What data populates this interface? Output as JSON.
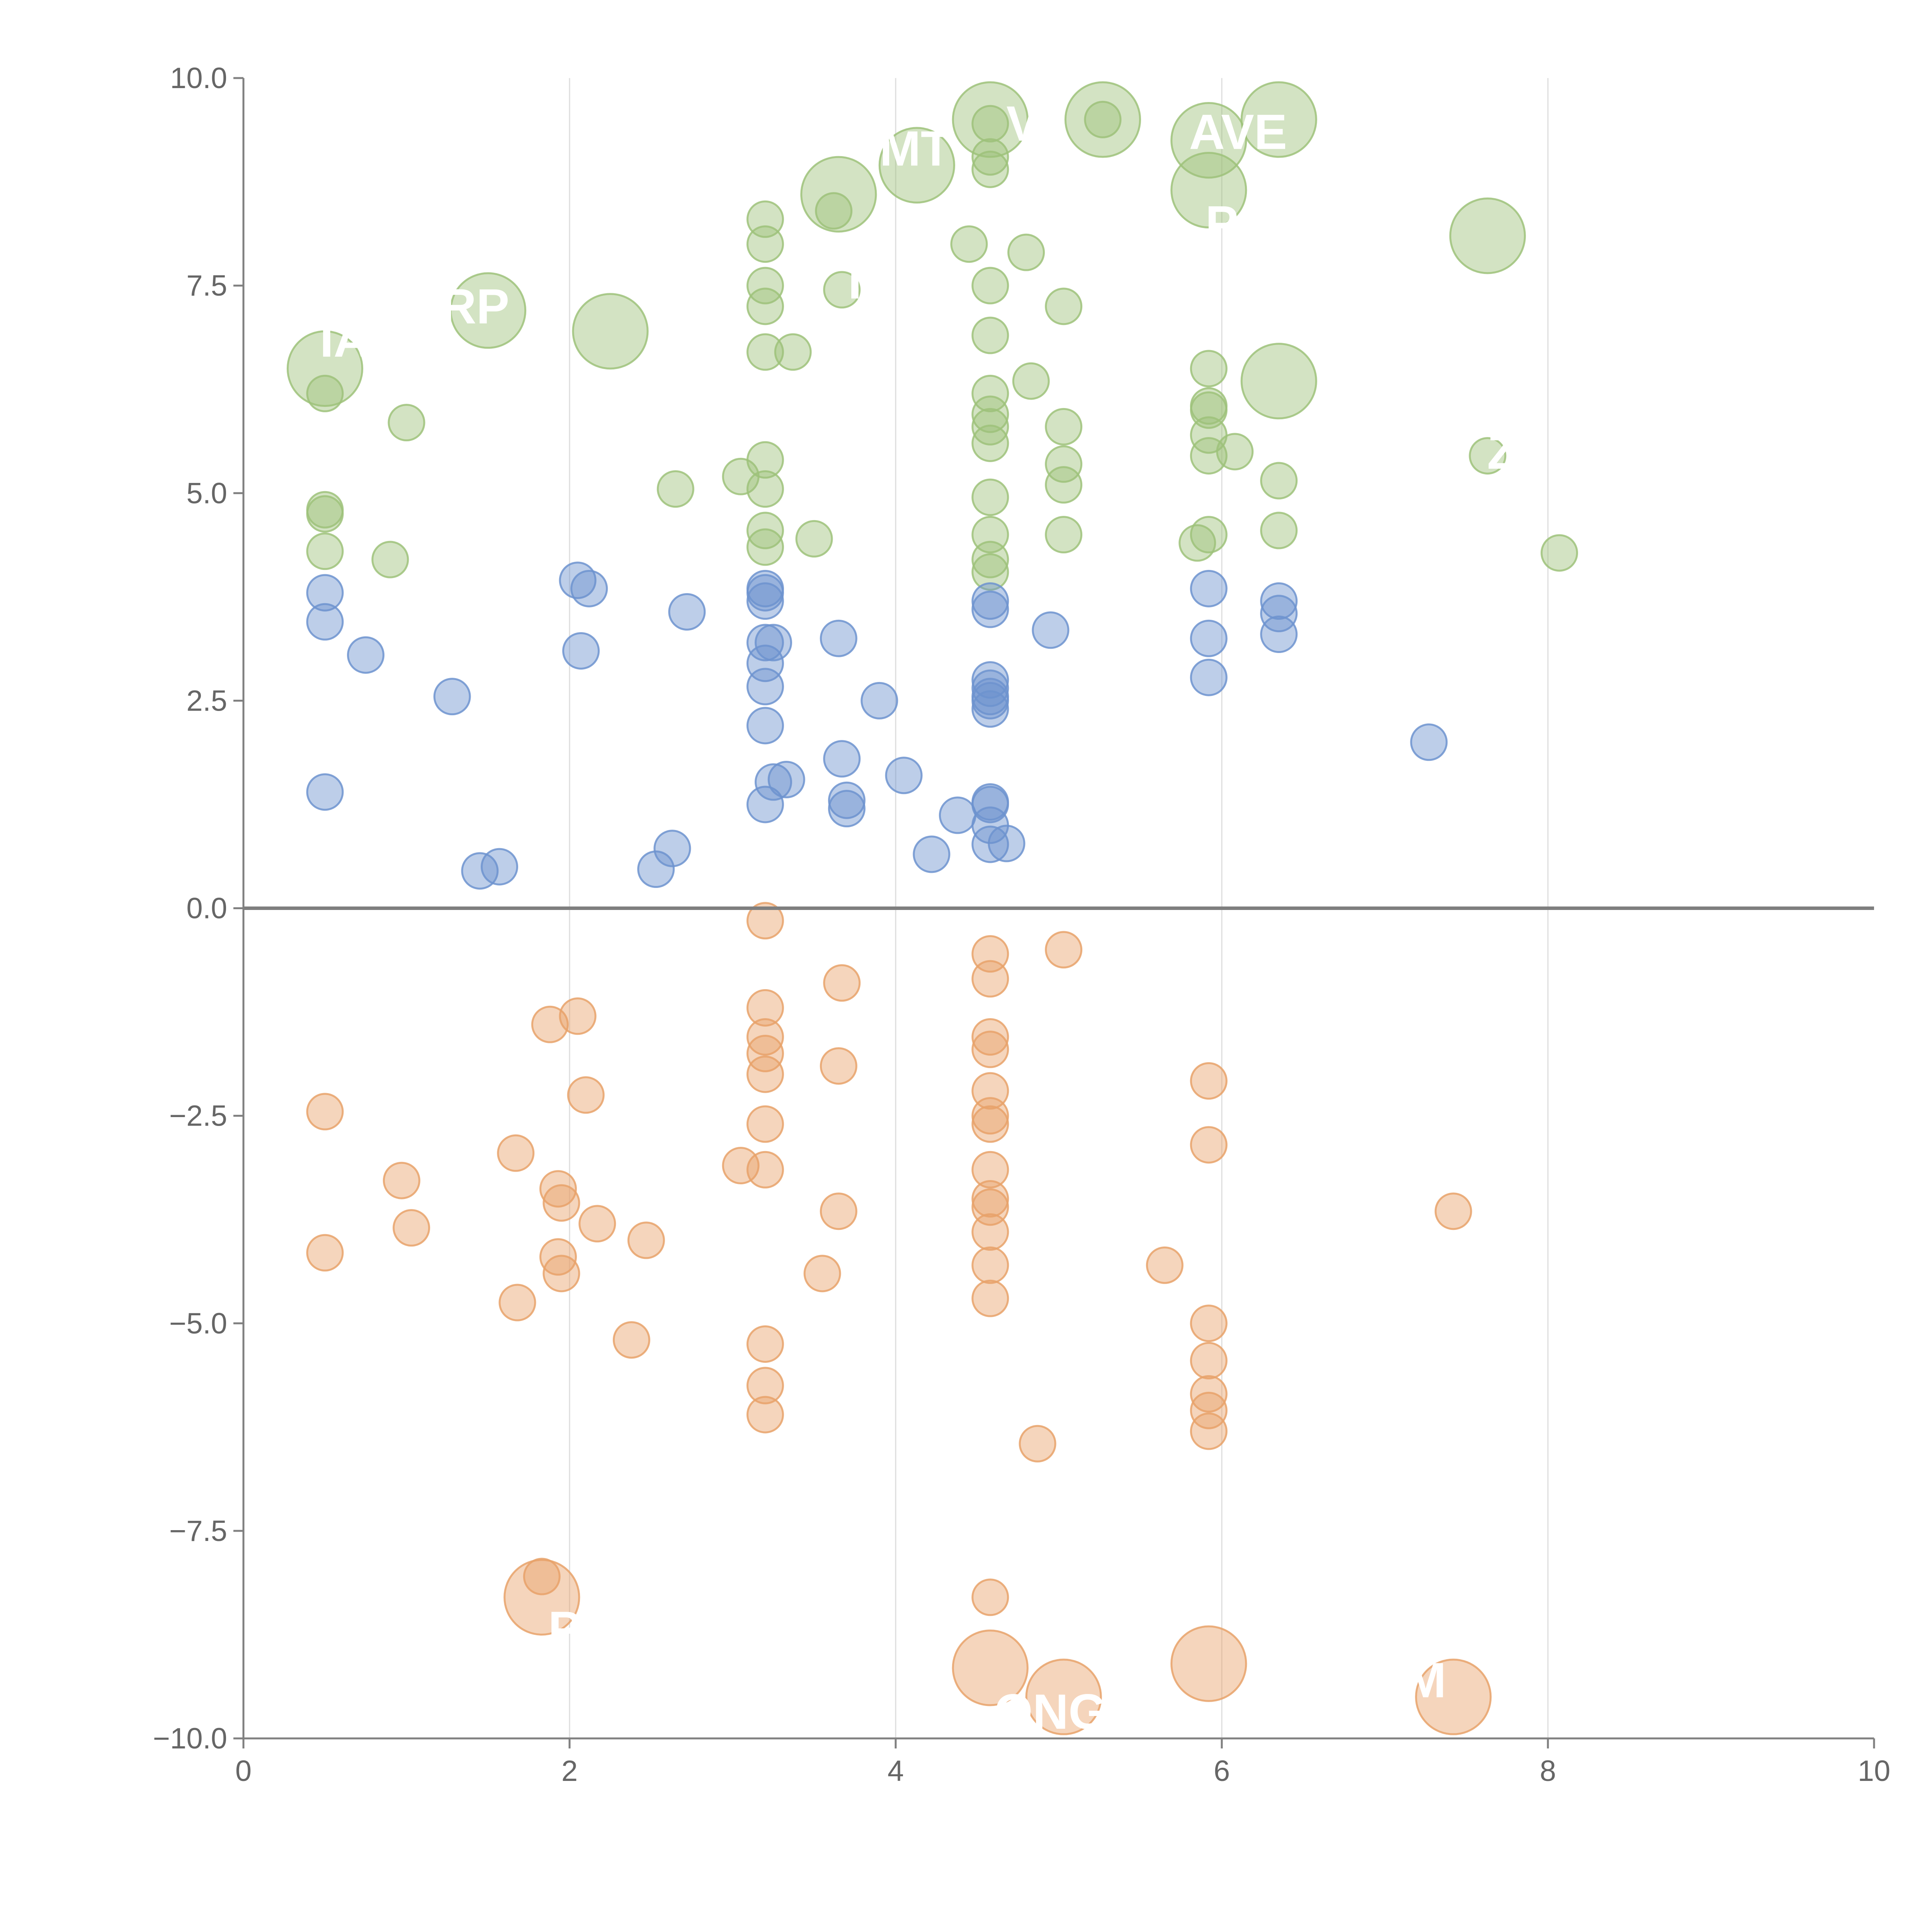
{
  "chart_data": {
    "type": "scatter",
    "title": "",
    "xlabel": "",
    "ylabel": "",
    "xlim": [
      0,
      10
    ],
    "ylim": [
      -10,
      10
    ],
    "x_ticks": [
      "0",
      "2",
      "4",
      "6",
      "8",
      "10"
    ],
    "y_ticks": [
      "−10.0",
      "−7.5",
      "−5.0",
      "−2.5",
      "0.0",
      "2.5",
      "5.0",
      "7.5",
      "10.0"
    ],
    "x_tick_values": [
      0,
      2,
      4,
      6,
      8,
      10
    ],
    "y_tick_values": [
      -10,
      -7.5,
      -5,
      -2.5,
      0,
      2.5,
      5,
      7.5,
      10
    ],
    "vertical_grid": [
      2,
      4,
      6,
      8
    ],
    "zero_line": true,
    "colors": {
      "green": "#9dc27a",
      "blue": "#6d93cf",
      "orange": "#e8a26a"
    },
    "series": [
      {
        "color": "green",
        "points": [
          [
            0.5,
            6.2,
            1
          ],
          [
            0.5,
            4.8,
            1
          ],
          [
            0.5,
            4.75,
            1
          ],
          [
            0.5,
            4.3,
            1
          ],
          [
            0.9,
            4.2,
            1
          ],
          [
            1.0,
            5.85,
            1
          ],
          [
            2.65,
            5.05,
            1
          ],
          [
            3.05,
            5.2,
            1
          ],
          [
            3.2,
            8.3,
            1
          ],
          [
            3.2,
            8.0,
            1
          ],
          [
            3.2,
            7.5,
            1
          ],
          [
            3.2,
            7.25,
            1
          ],
          [
            3.2,
            6.7,
            1
          ],
          [
            3.2,
            5.4,
            1
          ],
          [
            3.2,
            5.05,
            1
          ],
          [
            3.2,
            4.55,
            1
          ],
          [
            3.2,
            4.35,
            1
          ],
          [
            3.37,
            6.7,
            1
          ],
          [
            3.5,
            4.45,
            1
          ],
          [
            3.62,
            8.4,
            1
          ],
          [
            3.67,
            7.45,
            1
          ],
          [
            4.45,
            8.0,
            1
          ],
          [
            4.58,
            9.45,
            1
          ],
          [
            4.58,
            9.05,
            1
          ],
          [
            4.58,
            8.9,
            1
          ],
          [
            4.58,
            7.5,
            1
          ],
          [
            4.58,
            6.9,
            1
          ],
          [
            4.58,
            6.2,
            1
          ],
          [
            4.58,
            5.95,
            1
          ],
          [
            4.58,
            5.8,
            1
          ],
          [
            4.58,
            5.6,
            1
          ],
          [
            4.58,
            4.95,
            1
          ],
          [
            4.58,
            4.5,
            1
          ],
          [
            4.58,
            4.2,
            1
          ],
          [
            4.58,
            4.05,
            1
          ],
          [
            4.8,
            7.9,
            1
          ],
          [
            4.83,
            6.35,
            1
          ],
          [
            5.03,
            7.25,
            1
          ],
          [
            5.03,
            5.8,
            1
          ],
          [
            5.03,
            5.35,
            1
          ],
          [
            5.03,
            5.1,
            1
          ],
          [
            5.03,
            4.5,
            1
          ],
          [
            5.27,
            9.5,
            1
          ],
          [
            5.85,
            4.4,
            1
          ],
          [
            5.92,
            6.5,
            1
          ],
          [
            5.92,
            6.05,
            1
          ],
          [
            5.92,
            6.0,
            1
          ],
          [
            5.92,
            5.7,
            1
          ],
          [
            5.92,
            5.45,
            1
          ],
          [
            5.92,
            4.5,
            1
          ],
          [
            6.08,
            5.5,
            1
          ],
          [
            6.35,
            5.15,
            1
          ],
          [
            6.35,
            4.55,
            1
          ],
          [
            7.63,
            5.45,
            1
          ],
          [
            8.07,
            4.28,
            1
          ],
          [
            0.5,
            6.5,
            2.1
          ],
          [
            1.5,
            7.2,
            2.1
          ],
          [
            2.25,
            6.95,
            2.1
          ],
          [
            3.65,
            8.6,
            2.1
          ],
          [
            4.13,
            8.95,
            2.1
          ],
          [
            4.58,
            9.5,
            2.1
          ],
          [
            5.27,
            9.5,
            2.1
          ],
          [
            5.92,
            9.25,
            2.1
          ],
          [
            5.92,
            8.65,
            2.1
          ],
          [
            6.35,
            9.5,
            2.1
          ],
          [
            6.35,
            6.35,
            2.1
          ],
          [
            7.63,
            8.1,
            2.1
          ]
        ]
      },
      {
        "color": "blue",
        "points": [
          [
            0.5,
            3.8,
            1
          ],
          [
            0.5,
            3.45,
            1
          ],
          [
            0.5,
            1.4,
            1
          ],
          [
            0.75,
            3.05,
            1
          ],
          [
            1.28,
            2.55,
            1
          ],
          [
            1.45,
            0.45,
            1
          ],
          [
            1.57,
            0.5,
            1
          ],
          [
            2.05,
            3.95,
            1
          ],
          [
            2.07,
            3.1,
            1
          ],
          [
            2.12,
            3.85,
            1
          ],
          [
            2.53,
            0.47,
            1
          ],
          [
            2.63,
            0.72,
            1
          ],
          [
            2.72,
            3.57,
            1
          ],
          [
            3.2,
            3.85,
            1
          ],
          [
            3.2,
            3.8,
            1
          ],
          [
            3.2,
            3.7,
            1
          ],
          [
            3.2,
            3.2,
            1
          ],
          [
            3.2,
            2.95,
            1
          ],
          [
            3.2,
            2.67,
            1
          ],
          [
            3.2,
            2.2,
            1
          ],
          [
            3.2,
            1.25,
            1
          ],
          [
            3.25,
            3.2,
            1
          ],
          [
            3.25,
            1.52,
            1
          ],
          [
            3.33,
            1.55,
            1
          ],
          [
            3.65,
            3.25,
            1
          ],
          [
            3.67,
            1.8,
            1
          ],
          [
            3.7,
            1.3,
            1
          ],
          [
            3.7,
            1.2,
            1
          ],
          [
            3.9,
            2.5,
            1
          ],
          [
            4.05,
            1.6,
            1
          ],
          [
            4.22,
            0.65,
            1
          ],
          [
            4.38,
            1.12,
            1
          ],
          [
            4.58,
            3.7,
            1
          ],
          [
            4.58,
            3.6,
            1
          ],
          [
            4.58,
            2.75,
            1
          ],
          [
            4.58,
            2.65,
            1
          ],
          [
            4.58,
            2.55,
            1
          ],
          [
            4.58,
            2.5,
            1
          ],
          [
            4.58,
            2.4,
            1
          ],
          [
            4.58,
            1.28,
            1
          ],
          [
            4.58,
            1.25,
            1
          ],
          [
            4.58,
            1.0,
            1
          ],
          [
            4.58,
            0.77,
            1
          ],
          [
            4.68,
            0.78,
            1
          ],
          [
            4.95,
            3.35,
            1
          ],
          [
            5.92,
            3.85,
            1
          ],
          [
            5.92,
            3.25,
            1
          ],
          [
            5.92,
            2.78,
            1
          ],
          [
            6.35,
            3.7,
            1
          ],
          [
            6.35,
            3.55,
            1
          ],
          [
            6.35,
            3.3,
            1
          ],
          [
            7.27,
            2.0,
            1
          ]
        ]
      },
      {
        "color": "orange",
        "points": [
          [
            0.5,
            -2.45,
            1
          ],
          [
            0.5,
            -4.15,
            1
          ],
          [
            0.97,
            -3.28,
            1
          ],
          [
            1.03,
            -3.85,
            1
          ],
          [
            1.67,
            -2.95,
            1
          ],
          [
            1.68,
            -4.75,
            1
          ],
          [
            1.88,
            -1.4,
            1
          ],
          [
            1.93,
            -3.38,
            1
          ],
          [
            1.93,
            -4.2,
            1
          ],
          [
            1.95,
            -3.55,
            1
          ],
          [
            1.95,
            -4.4,
            1
          ],
          [
            2.05,
            -1.3,
            1
          ],
          [
            2.1,
            -2.25,
            1
          ],
          [
            2.17,
            -3.8,
            1
          ],
          [
            2.38,
            -5.2,
            1
          ],
          [
            2.47,
            -4.0,
            1
          ],
          [
            3.05,
            -3.1,
            1
          ],
          [
            3.2,
            -0.15,
            1
          ],
          [
            3.2,
            -1.2,
            1
          ],
          [
            3.2,
            -1.55,
            1
          ],
          [
            3.2,
            -1.75,
            1
          ],
          [
            3.2,
            -2.0,
            1
          ],
          [
            3.2,
            -2.6,
            1
          ],
          [
            3.2,
            -3.15,
            1
          ],
          [
            3.2,
            -5.25,
            1
          ],
          [
            3.2,
            -5.75,
            1
          ],
          [
            3.2,
            -6.1,
            1
          ],
          [
            3.55,
            -4.4,
            1
          ],
          [
            3.65,
            -1.9,
            1
          ],
          [
            3.65,
            -3.65,
            1
          ],
          [
            3.67,
            -0.9,
            1
          ],
          [
            4.58,
            -0.55,
            1
          ],
          [
            4.58,
            -0.85,
            1
          ],
          [
            4.58,
            -1.55,
            1
          ],
          [
            4.58,
            -1.7,
            1
          ],
          [
            4.58,
            -2.2,
            1
          ],
          [
            4.58,
            -2.5,
            1
          ],
          [
            4.58,
            -2.6,
            1
          ],
          [
            4.58,
            -3.15,
            1
          ],
          [
            4.58,
            -3.5,
            1
          ],
          [
            4.58,
            -3.6,
            1
          ],
          [
            4.58,
            -3.9,
            1
          ],
          [
            4.58,
            -4.3,
            1
          ],
          [
            4.58,
            -4.7,
            1
          ],
          [
            4.58,
            -8.3,
            1
          ],
          [
            4.87,
            -6.45,
            1
          ],
          [
            5.03,
            -0.5,
            1
          ],
          [
            5.65,
            -4.3,
            1
          ],
          [
            5.92,
            -2.08,
            1
          ],
          [
            5.92,
            -2.85,
            1
          ],
          [
            5.92,
            -5.0,
            1
          ],
          [
            5.92,
            -5.45,
            1
          ],
          [
            5.92,
            -5.85,
            1
          ],
          [
            5.92,
            -6.05,
            1
          ],
          [
            5.92,
            -6.3,
            1
          ],
          [
            7.42,
            -3.65,
            1
          ],
          [
            1.83,
            -8.05,
            1
          ],
          [
            1.83,
            -8.3,
            2.1
          ],
          [
            4.58,
            -9.15,
            2.1
          ],
          [
            5.03,
            -9.5,
            2.1
          ],
          [
            5.92,
            -9.1,
            2.1
          ],
          [
            7.42,
            -9.5,
            2.1
          ]
        ]
      }
    ],
    "annotations": [
      {
        "text": "IA",
        "x": 0.62,
        "y": 6.85
      },
      {
        "text": "RP",
        "x": 1.42,
        "y": 7.25
      },
      {
        "text": "MT",
        "x": 4.12,
        "y": 9.15
      },
      {
        "text": "V",
        "x": 4.78,
        "y": 9.45
      },
      {
        "text": "AVE",
        "x": 6.1,
        "y": 9.35
      },
      {
        "text": "P",
        "x": 6.0,
        "y": 8.25
      },
      {
        "text": "T",
        "x": 3.75,
        "y": 7.55
      },
      {
        "text": "Z",
        "x": 7.72,
        "y": 5.5
      },
      {
        "text": "P",
        "x": 1.97,
        "y": -8.68
      },
      {
        "text": "ONG",
        "x": 4.95,
        "y": -9.68
      },
      {
        "text": "M",
        "x": 7.25,
        "y": -9.3
      }
    ]
  }
}
